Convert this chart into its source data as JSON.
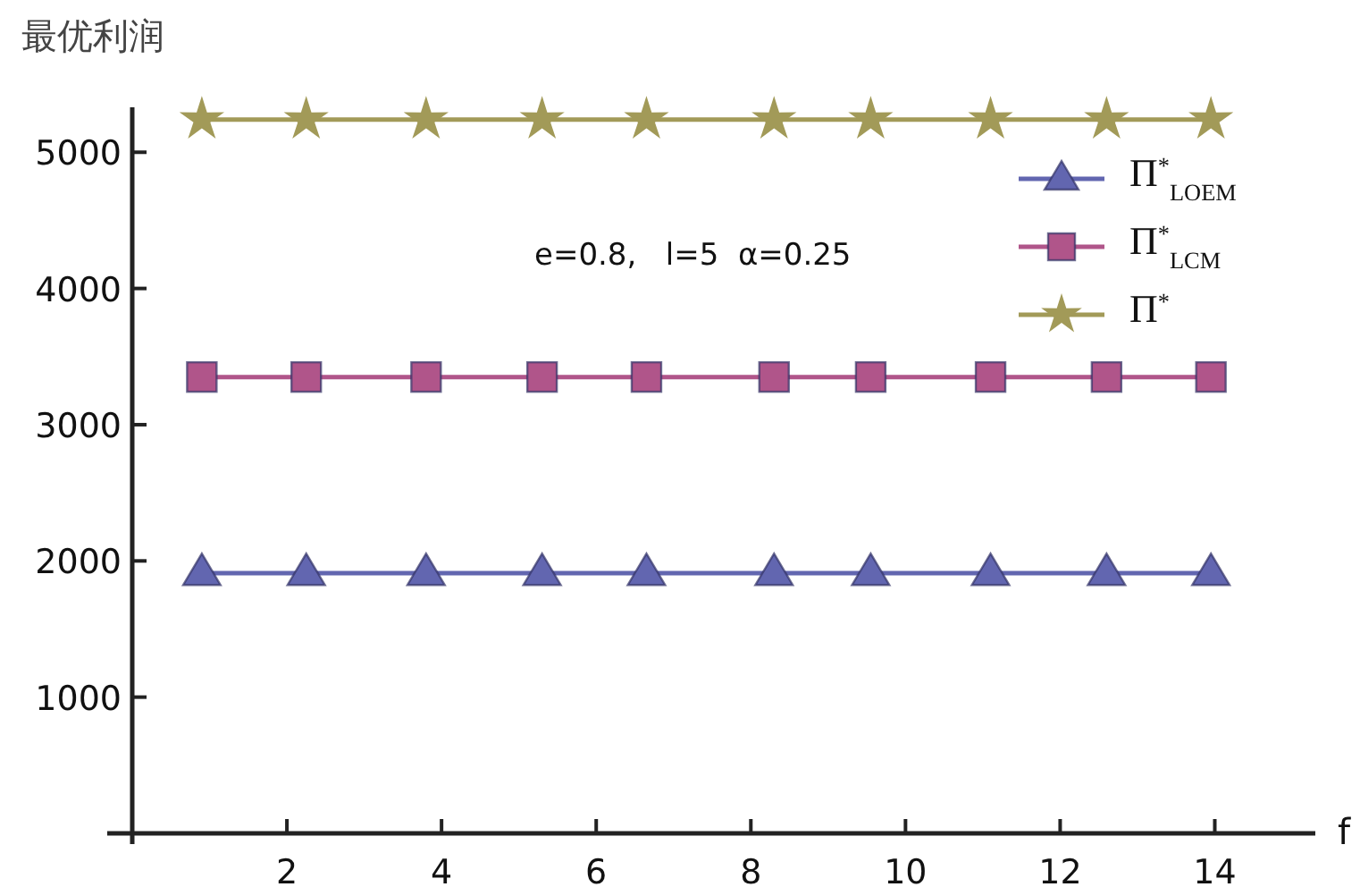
{
  "chart_data": {
    "type": "line",
    "ylabel": "最优利润",
    "xlabel": "f",
    "xlim": [
      0,
      15.3
    ],
    "ylim": [
      0,
      5330
    ],
    "xticks": [
      2,
      4,
      6,
      8,
      10,
      12,
      14
    ],
    "yticks": [
      1000,
      2000,
      3000,
      4000,
      5000
    ],
    "grid": false,
    "legend": "top right",
    "line_style": "solid",
    "annotations": [
      "e=0.8,   l=5  α=0.25"
    ],
    "series": [
      {
        "name": "Π$^{*}$$_{LOEM}$",
        "color": "#6266b0",
        "marker": "triangle",
        "x": [
          0.9,
          2.25,
          3.8,
          5.3,
          6.65,
          8.3,
          9.55,
          11.1,
          12.6,
          13.95
        ],
        "values": [
          1910,
          1910,
          1910,
          1910,
          1910,
          1910,
          1910,
          1910,
          1910,
          1910
        ]
      },
      {
        "name": "Π$^{*}$$_{LCM}$",
        "color": "#b0558a",
        "marker": "square",
        "x": [
          0.9,
          2.25,
          3.8,
          5.3,
          6.65,
          8.3,
          9.55,
          11.1,
          12.6,
          13.95
        ],
        "values": [
          3350,
          3350,
          3350,
          3350,
          3350,
          3350,
          3350,
          3350,
          3350,
          3350
        ]
      },
      {
        "name": "Π$^{*}$",
        "color": "#a29a58",
        "marker": "star",
        "x": [
          0.9,
          2.25,
          3.8,
          5.3,
          6.65,
          8.3,
          9.55,
          11.1,
          12.6,
          13.95
        ],
        "values": [
          5240,
          5240,
          5240,
          5240,
          5240,
          5240,
          5240,
          5240,
          5240,
          5240
        ]
      }
    ]
  }
}
